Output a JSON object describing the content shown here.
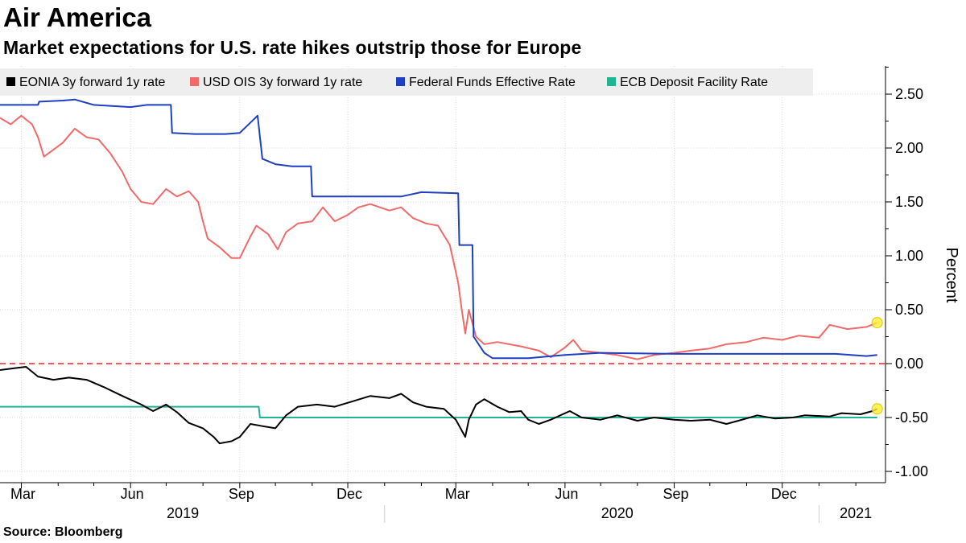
{
  "header": {
    "title": "Air America",
    "subtitle": "Market expectations for U.S. rate hikes outstrip those for Europe"
  },
  "footer": {
    "source": "Source: Bloomberg"
  },
  "chart_data": {
    "type": "line",
    "ylabel": "Percent",
    "ylim": [
      -1.0,
      2.75
    ],
    "yticks": [
      "2.50",
      "2.00",
      "1.50",
      "1.00",
      "0.50",
      "0.00",
      "-0.50",
      "-1.00"
    ],
    "xlim": [
      "2019-02-11",
      "2021-02-26"
    ],
    "month_ticks": [
      {
        "label": "Mar",
        "date": "2019-03-01"
      },
      {
        "label": "Jun",
        "date": "2019-06-01"
      },
      {
        "label": "Sep",
        "date": "2019-09-01"
      },
      {
        "label": "Dec",
        "date": "2019-12-01"
      },
      {
        "label": "Mar",
        "date": "2020-03-01"
      },
      {
        "label": "Jun",
        "date": "2020-06-01"
      },
      {
        "label": "Sep",
        "date": "2020-09-01"
      },
      {
        "label": "Dec",
        "date": "2020-12-01"
      }
    ],
    "year_labels": [
      {
        "label": "2019",
        "date": "2019-07-15"
      },
      {
        "label": "2020",
        "date": "2020-07-15"
      },
      {
        "label": "2021",
        "date": "2021-02-01"
      }
    ],
    "year_dividers": [
      "2020-01-01",
      "2021-01-01"
    ],
    "reference_line": {
      "y": 0.0,
      "color": "#e8232e",
      "style": "dashed"
    },
    "legend_placement": "top",
    "series": [
      {
        "name": "EONIA 3y forward 1y rate",
        "color": "#000000",
        "end_marker": true,
        "points": [
          [
            "2019-02-11",
            -0.06
          ],
          [
            "2019-02-25",
            -0.04
          ],
          [
            "2019-03-05",
            -0.03
          ],
          [
            "2019-03-15",
            -0.12
          ],
          [
            "2019-03-28",
            -0.15
          ],
          [
            "2019-04-10",
            -0.13
          ],
          [
            "2019-04-25",
            -0.15
          ],
          [
            "2019-05-10",
            -0.22
          ],
          [
            "2019-05-25",
            -0.3
          ],
          [
            "2019-06-10",
            -0.38
          ],
          [
            "2019-06-20",
            -0.44
          ],
          [
            "2019-07-01",
            -0.38
          ],
          [
            "2019-07-10",
            -0.45
          ],
          [
            "2019-07-20",
            -0.55
          ],
          [
            "2019-08-01",
            -0.6
          ],
          [
            "2019-08-10",
            -0.68
          ],
          [
            "2019-08-15",
            -0.74
          ],
          [
            "2019-08-25",
            -0.72
          ],
          [
            "2019-09-01",
            -0.68
          ],
          [
            "2019-09-10",
            -0.56
          ],
          [
            "2019-09-20",
            -0.58
          ],
          [
            "2019-10-01",
            -0.6
          ],
          [
            "2019-10-10",
            -0.48
          ],
          [
            "2019-10-20",
            -0.4
          ],
          [
            "2019-11-05",
            -0.38
          ],
          [
            "2019-11-20",
            -0.4
          ],
          [
            "2019-12-05",
            -0.35
          ],
          [
            "2019-12-20",
            -0.3
          ],
          [
            "2020-01-05",
            -0.32
          ],
          [
            "2020-01-15",
            -0.28
          ],
          [
            "2020-01-25",
            -0.36
          ],
          [
            "2020-02-05",
            -0.4
          ],
          [
            "2020-02-20",
            -0.42
          ],
          [
            "2020-03-01",
            -0.52
          ],
          [
            "2020-03-09",
            -0.68
          ],
          [
            "2020-03-12",
            -0.52
          ],
          [
            "2020-03-18",
            -0.38
          ],
          [
            "2020-03-25",
            -0.33
          ],
          [
            "2020-04-05",
            -0.4
          ],
          [
            "2020-04-15",
            -0.45
          ],
          [
            "2020-04-25",
            -0.44
          ],
          [
            "2020-05-01",
            -0.52
          ],
          [
            "2020-05-10",
            -0.56
          ],
          [
            "2020-05-20",
            -0.52
          ],
          [
            "2020-06-05",
            -0.44
          ],
          [
            "2020-06-15",
            -0.5
          ],
          [
            "2020-07-01",
            -0.52
          ],
          [
            "2020-07-15",
            -0.48
          ],
          [
            "2020-08-01",
            -0.53
          ],
          [
            "2020-08-15",
            -0.5
          ],
          [
            "2020-09-01",
            -0.52
          ],
          [
            "2020-09-15",
            -0.53
          ],
          [
            "2020-10-01",
            -0.52
          ],
          [
            "2020-10-15",
            -0.56
          ],
          [
            "2020-10-25",
            -0.53
          ],
          [
            "2020-11-10",
            -0.48
          ],
          [
            "2020-11-25",
            -0.51
          ],
          [
            "2020-12-10",
            -0.5
          ],
          [
            "2020-12-20",
            -0.48
          ],
          [
            "2021-01-10",
            -0.49
          ],
          [
            "2021-01-20",
            -0.46
          ],
          [
            "2021-02-05",
            -0.47
          ],
          [
            "2021-02-15",
            -0.44
          ],
          [
            "2021-02-19",
            -0.42
          ]
        ]
      },
      {
        "name": "USD OIS 3y forward 1y rate",
        "color": "#f06a6a",
        "end_marker": true,
        "points": [
          [
            "2019-02-11",
            2.28
          ],
          [
            "2019-02-20",
            2.22
          ],
          [
            "2019-03-01",
            2.3
          ],
          [
            "2019-03-10",
            2.22
          ],
          [
            "2019-03-15",
            2.1
          ],
          [
            "2019-03-20",
            1.92
          ],
          [
            "2019-03-25",
            1.96
          ],
          [
            "2019-04-05",
            2.05
          ],
          [
            "2019-04-15",
            2.18
          ],
          [
            "2019-04-25",
            2.1
          ],
          [
            "2019-05-05",
            2.08
          ],
          [
            "2019-05-15",
            1.95
          ],
          [
            "2019-05-25",
            1.78
          ],
          [
            "2019-06-01",
            1.62
          ],
          [
            "2019-06-10",
            1.5
          ],
          [
            "2019-06-20",
            1.48
          ],
          [
            "2019-07-01",
            1.62
          ],
          [
            "2019-07-10",
            1.55
          ],
          [
            "2019-07-20",
            1.6
          ],
          [
            "2019-07-28",
            1.5
          ],
          [
            "2019-08-01",
            1.32
          ],
          [
            "2019-08-05",
            1.16
          ],
          [
            "2019-08-15",
            1.08
          ],
          [
            "2019-08-25",
            0.98
          ],
          [
            "2019-09-01",
            0.98
          ],
          [
            "2019-09-10",
            1.18
          ],
          [
            "2019-09-15",
            1.28
          ],
          [
            "2019-09-25",
            1.2
          ],
          [
            "2019-10-03",
            1.06
          ],
          [
            "2019-10-10",
            1.22
          ],
          [
            "2019-10-20",
            1.3
          ],
          [
            "2019-11-01",
            1.32
          ],
          [
            "2019-11-10",
            1.45
          ],
          [
            "2019-11-20",
            1.32
          ],
          [
            "2019-12-01",
            1.38
          ],
          [
            "2019-12-10",
            1.45
          ],
          [
            "2019-12-20",
            1.48
          ],
          [
            "2020-01-05",
            1.42
          ],
          [
            "2020-01-15",
            1.45
          ],
          [
            "2020-01-25",
            1.35
          ],
          [
            "2020-02-05",
            1.3
          ],
          [
            "2020-02-15",
            1.28
          ],
          [
            "2020-02-25",
            1.1
          ],
          [
            "2020-03-03",
            0.75
          ],
          [
            "2020-03-06",
            0.5
          ],
          [
            "2020-03-09",
            0.28
          ],
          [
            "2020-03-12",
            0.5
          ],
          [
            "2020-03-18",
            0.25
          ],
          [
            "2020-03-25",
            0.18
          ],
          [
            "2020-04-05",
            0.2
          ],
          [
            "2020-04-15",
            0.18
          ],
          [
            "2020-04-25",
            0.16
          ],
          [
            "2020-05-10",
            0.12
          ],
          [
            "2020-05-20",
            0.06
          ],
          [
            "2020-06-01",
            0.15
          ],
          [
            "2020-06-08",
            0.22
          ],
          [
            "2020-06-15",
            0.12
          ],
          [
            "2020-07-01",
            0.1
          ],
          [
            "2020-07-15",
            0.08
          ],
          [
            "2020-08-01",
            0.04
          ],
          [
            "2020-08-15",
            0.08
          ],
          [
            "2020-09-01",
            0.1
          ],
          [
            "2020-09-15",
            0.12
          ],
          [
            "2020-10-01",
            0.14
          ],
          [
            "2020-10-15",
            0.18
          ],
          [
            "2020-11-01",
            0.2
          ],
          [
            "2020-11-15",
            0.24
          ],
          [
            "2020-12-01",
            0.22
          ],
          [
            "2020-12-15",
            0.26
          ],
          [
            "2021-01-01",
            0.24
          ],
          [
            "2021-01-10",
            0.36
          ],
          [
            "2021-01-25",
            0.32
          ],
          [
            "2021-02-10",
            0.34
          ],
          [
            "2021-02-19",
            0.38
          ]
        ]
      },
      {
        "name": "Federal Funds Effective Rate",
        "color": "#1f3fc2",
        "end_marker": false,
        "points": [
          [
            "2019-02-11",
            2.4
          ],
          [
            "2019-03-15",
            2.4
          ],
          [
            "2019-03-16",
            2.43
          ],
          [
            "2019-04-05",
            2.44
          ],
          [
            "2019-04-15",
            2.45
          ],
          [
            "2019-05-01",
            2.4
          ],
          [
            "2019-06-01",
            2.38
          ],
          [
            "2019-06-15",
            2.4
          ],
          [
            "2019-07-05",
            2.4
          ],
          [
            "2019-07-06",
            2.14
          ],
          [
            "2019-07-25",
            2.13
          ],
          [
            "2019-08-01",
            2.13
          ],
          [
            "2019-08-20",
            2.13
          ],
          [
            "2019-09-01",
            2.14
          ],
          [
            "2019-09-16",
            2.3
          ],
          [
            "2019-09-20",
            1.9
          ],
          [
            "2019-10-01",
            1.85
          ],
          [
            "2019-10-15",
            1.83
          ],
          [
            "2019-10-31",
            1.83
          ],
          [
            "2019-11-01",
            1.55
          ],
          [
            "2019-12-01",
            1.55
          ],
          [
            "2020-01-15",
            1.55
          ],
          [
            "2020-02-01",
            1.59
          ],
          [
            "2020-03-03",
            1.58
          ],
          [
            "2020-03-04",
            1.1
          ],
          [
            "2020-03-15",
            1.1
          ],
          [
            "2020-03-16",
            0.25
          ],
          [
            "2020-03-25",
            0.1
          ],
          [
            "2020-04-01",
            0.05
          ],
          [
            "2020-05-01",
            0.05
          ],
          [
            "2020-06-01",
            0.08
          ],
          [
            "2020-07-01",
            0.1
          ],
          [
            "2020-09-01",
            0.09
          ],
          [
            "2020-12-01",
            0.09
          ],
          [
            "2021-01-15",
            0.09
          ],
          [
            "2021-02-10",
            0.07
          ],
          [
            "2021-02-19",
            0.08
          ]
        ]
      },
      {
        "name": "ECB Deposit Facility Rate",
        "color": "#1fb592",
        "end_marker": false,
        "points": [
          [
            "2019-02-11",
            -0.4
          ],
          [
            "2019-09-17",
            -0.4
          ],
          [
            "2019-09-18",
            -0.5
          ],
          [
            "2021-02-19",
            -0.5
          ]
        ]
      }
    ]
  }
}
